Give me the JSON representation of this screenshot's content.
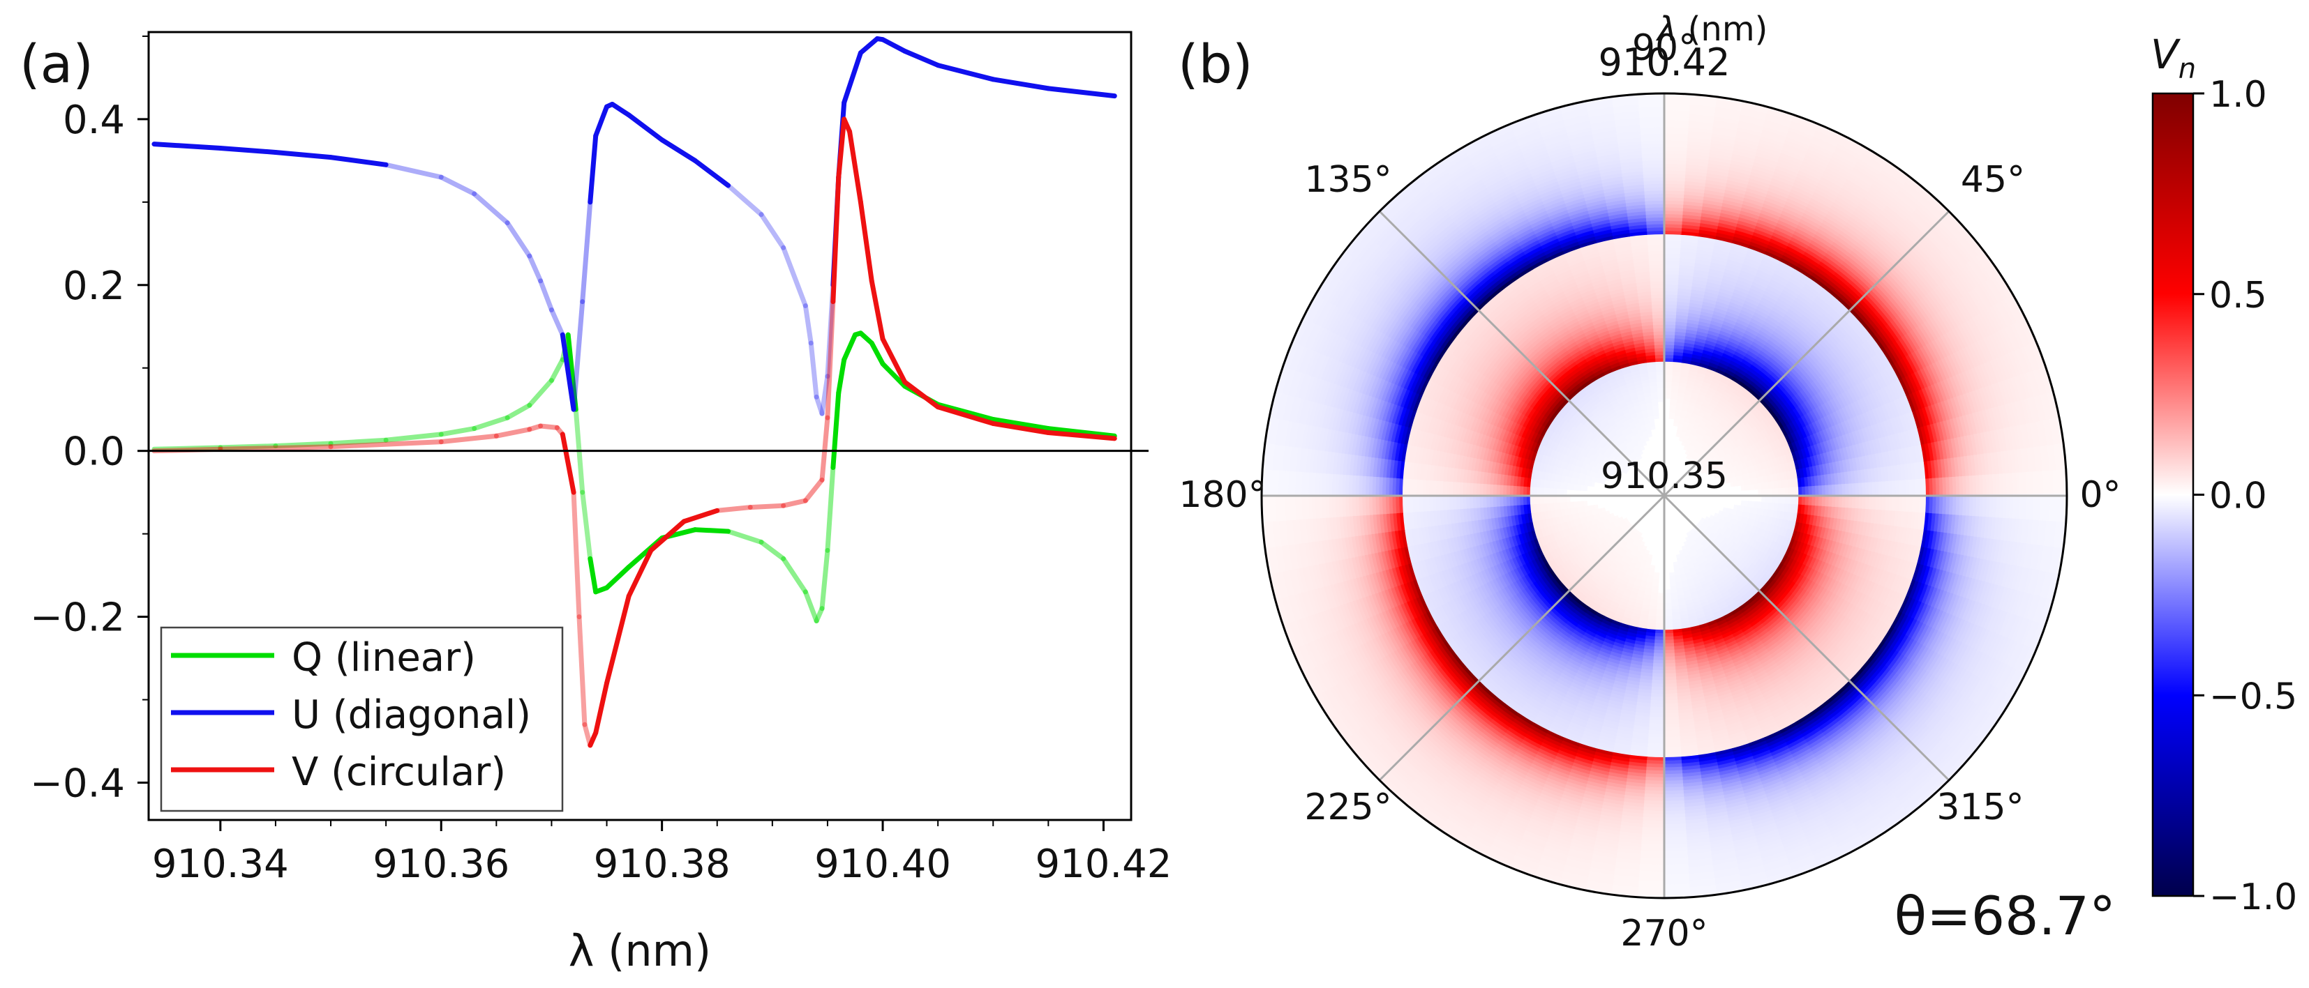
{
  "panel_a": {
    "label": "(a)"
  },
  "panel_b": {
    "label": "(b)",
    "annotation": "θ=68.7°",
    "radial_axis_label": "λ (nm)",
    "outer_radius_label": "910.42",
    "inner_radius_label": "910.35",
    "colorbar_label_main": "V",
    "colorbar_label_sub": "n"
  },
  "chart_data": [
    {
      "type": "line",
      "xlabel": "λ (nm)",
      "ylabel": "",
      "xlim": [
        910.3335,
        910.4225
      ],
      "ylim": [
        -0.445,
        0.505
      ],
      "xticks": [
        910.34,
        910.36,
        910.38,
        910.4,
        910.42
      ],
      "xtick_labels": [
        "910.34",
        "910.36",
        "910.38",
        "910.40",
        "910.42"
      ],
      "yticks": [
        -0.4,
        -0.2,
        0.0,
        0.2,
        0.4
      ],
      "ytick_labels": [
        "−0.4",
        "−0.2",
        "0.0",
        "0.2",
        "0.4"
      ],
      "zero_line": true,
      "legend_position": "lower-left",
      "series": [
        {
          "name": "Q (linear)",
          "color": "#00dd00",
          "points": [
            [
              910.334,
              0.002
            ],
            [
              910.34,
              0.004
            ],
            [
              910.345,
              0.006
            ],
            [
              910.35,
              0.009
            ],
            [
              910.355,
              0.013
            ],
            [
              910.36,
              0.02
            ],
            [
              910.363,
              0.027
            ],
            [
              910.366,
              0.04
            ],
            [
              910.368,
              0.055
            ],
            [
              910.37,
              0.085
            ],
            [
              910.371,
              0.11
            ],
            [
              910.3715,
              0.14
            ],
            [
              910.3722,
              0.05
            ],
            [
              910.3728,
              -0.05
            ],
            [
              910.3735,
              -0.13
            ],
            [
              910.374,
              -0.17
            ],
            [
              910.375,
              -0.165
            ],
            [
              910.377,
              -0.14
            ],
            [
              910.38,
              -0.105
            ],
            [
              910.383,
              -0.095
            ],
            [
              910.386,
              -0.097
            ],
            [
              910.389,
              -0.11
            ],
            [
              910.391,
              -0.13
            ],
            [
              910.393,
              -0.17
            ],
            [
              910.394,
              -0.205
            ],
            [
              910.3945,
              -0.19
            ],
            [
              910.395,
              -0.12
            ],
            [
              910.3955,
              -0.02
            ],
            [
              910.396,
              0.07
            ],
            [
              910.3965,
              0.11
            ],
            [
              910.3975,
              0.14
            ],
            [
              910.398,
              0.142
            ],
            [
              910.399,
              0.13
            ],
            [
              910.4,
              0.105
            ],
            [
              910.402,
              0.078
            ],
            [
              910.405,
              0.056
            ],
            [
              910.41,
              0.038
            ],
            [
              910.415,
              0.027
            ],
            [
              910.421,
              0.018
            ]
          ]
        },
        {
          "name": "U (diagonal)",
          "color": "#1010ee",
          "points": [
            [
              910.334,
              0.37
            ],
            [
              910.34,
              0.365
            ],
            [
              910.345,
              0.36
            ],
            [
              910.35,
              0.354
            ],
            [
              910.355,
              0.345
            ],
            [
              910.36,
              0.33
            ],
            [
              910.363,
              0.31
            ],
            [
              910.366,
              0.275
            ],
            [
              910.368,
              0.235
            ],
            [
              910.369,
              0.205
            ],
            [
              910.37,
              0.17
            ],
            [
              910.371,
              0.14
            ],
            [
              910.372,
              0.05
            ],
            [
              910.3728,
              0.18
            ],
            [
              910.3735,
              0.3
            ],
            [
              910.374,
              0.38
            ],
            [
              910.375,
              0.415
            ],
            [
              910.3755,
              0.418
            ],
            [
              910.377,
              0.405
            ],
            [
              910.38,
              0.375
            ],
            [
              910.383,
              0.35
            ],
            [
              910.386,
              0.32
            ],
            [
              910.389,
              0.285
            ],
            [
              910.391,
              0.245
            ],
            [
              910.393,
              0.175
            ],
            [
              910.3935,
              0.13
            ],
            [
              910.394,
              0.065
            ],
            [
              910.3945,
              0.045
            ],
            [
              910.395,
              0.09
            ],
            [
              910.3955,
              0.2
            ],
            [
              910.396,
              0.33
            ],
            [
              910.3965,
              0.42
            ],
            [
              910.398,
              0.48
            ],
            [
              910.3995,
              0.497
            ],
            [
              910.4,
              0.496
            ],
            [
              910.402,
              0.482
            ],
            [
              910.405,
              0.465
            ],
            [
              910.41,
              0.448
            ],
            [
              910.415,
              0.437
            ],
            [
              910.421,
              0.428
            ]
          ]
        },
        {
          "name": "V (circular)",
          "color": "#ee1111",
          "points": [
            [
              910.334,
              0.0
            ],
            [
              910.34,
              0.002
            ],
            [
              910.35,
              0.005
            ],
            [
              910.36,
              0.011
            ],
            [
              910.365,
              0.018
            ],
            [
              910.368,
              0.026
            ],
            [
              910.369,
              0.03
            ],
            [
              910.3705,
              0.028
            ],
            [
              910.371,
              0.02
            ],
            [
              910.372,
              -0.05
            ],
            [
              910.3725,
              -0.2
            ],
            [
              910.373,
              -0.33
            ],
            [
              910.3735,
              -0.355
            ],
            [
              910.374,
              -0.34
            ],
            [
              910.375,
              -0.28
            ],
            [
              910.377,
              -0.175
            ],
            [
              910.379,
              -0.12
            ],
            [
              910.382,
              -0.085
            ],
            [
              910.385,
              -0.072
            ],
            [
              910.388,
              -0.068
            ],
            [
              910.391,
              -0.066
            ],
            [
              910.393,
              -0.06
            ],
            [
              910.3945,
              -0.035
            ],
            [
              910.395,
              0.04
            ],
            [
              910.3955,
              0.18
            ],
            [
              910.396,
              0.33
            ],
            [
              910.3965,
              0.4
            ],
            [
              910.397,
              0.385
            ],
            [
              910.398,
              0.3
            ],
            [
              910.399,
              0.205
            ],
            [
              910.4,
              0.135
            ],
            [
              910.402,
              0.083
            ],
            [
              910.405,
              0.053
            ],
            [
              910.41,
              0.033
            ],
            [
              910.415,
              0.022
            ],
            [
              910.421,
              0.015
            ]
          ]
        }
      ]
    },
    {
      "type": "heatmap",
      "projection": "polar",
      "title": "",
      "angle_labels": [
        "0°",
        "45°",
        "90°",
        "135°",
        "180°",
        "225°",
        "270°",
        "315°"
      ],
      "radial_range_nm": [
        910.35,
        910.42
      ],
      "radial_label": "λ (nm)",
      "annotation": "θ=68.7°",
      "colorbar": {
        "label": "V_n",
        "range": [
          -1.0,
          1.0
        ],
        "ticks": [
          1.0,
          0.5,
          0.0,
          -0.5,
          -1.0
        ],
        "tick_labels": [
          "1.0",
          "0.5",
          "0.0",
          "−0.5",
          "−1.0"
        ],
        "colormap": "seismic"
      },
      "rings": [
        {
          "wavelength": 910.3734,
          "peak": -0.95,
          "sign_pattern": "sin(2phi)",
          "note": "inner blue ring"
        },
        {
          "wavelength": 910.396,
          "peak": 0.9,
          "sign_pattern": "sin(2phi)",
          "note": "outer red ring"
        }
      ]
    }
  ]
}
